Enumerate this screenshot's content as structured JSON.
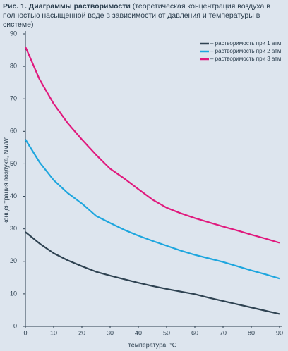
{
  "chart_data": {
    "type": "line",
    "title": "Рис. 1. Диаграммы растворимости",
    "subtitle": "(теоретическая концентрация воздуха в полностью насыщенной воде в зависимости от давления и температуры в системе)",
    "x_label": "температура, °С",
    "y_label": "концентрация воздуха, Nмл/л",
    "x": [
      0,
      5,
      10,
      15,
      20,
      25,
      30,
      35,
      40,
      45,
      50,
      55,
      60,
      65,
      70,
      75,
      80,
      85,
      90
    ],
    "series": [
      {
        "name": "– растворимость при 1 атм",
        "color": "#2f4352",
        "values": [
          29,
          25.5,
          22.5,
          20.3,
          18.5,
          16.8,
          15.6,
          14.5,
          13.4,
          12.4,
          11.5,
          10.7,
          9.9,
          8.8,
          7.8,
          6.8,
          5.8,
          4.8,
          3.8
        ]
      },
      {
        "name": "– растворимость при 2 атм",
        "color": "#1ea6de",
        "values": [
          57.5,
          50.5,
          45,
          41,
          37.8,
          34,
          31.8,
          29.7,
          27.9,
          26.3,
          24.8,
          23.3,
          22,
          20.9,
          19.8,
          18.5,
          17.2,
          16,
          14.7
        ]
      },
      {
        "name": "– растворимость при 3 атм",
        "color": "#e0197d",
        "values": [
          86,
          76,
          68.5,
          62.5,
          57.5,
          52.8,
          48.5,
          45.5,
          42.2,
          39,
          36.5,
          34.8,
          33.3,
          32,
          30.7,
          29.5,
          28.2,
          27,
          25.7
        ]
      }
    ],
    "xlim": [
      0,
      90
    ],
    "xticks": [
      0,
      10,
      20,
      30,
      40,
      50,
      60,
      70,
      80,
      90
    ],
    "ylim": [
      0,
      90
    ],
    "yticks": [
      0,
      10,
      20,
      30,
      40,
      50,
      60,
      70,
      80,
      90
    ],
    "legend": "upper right"
  }
}
